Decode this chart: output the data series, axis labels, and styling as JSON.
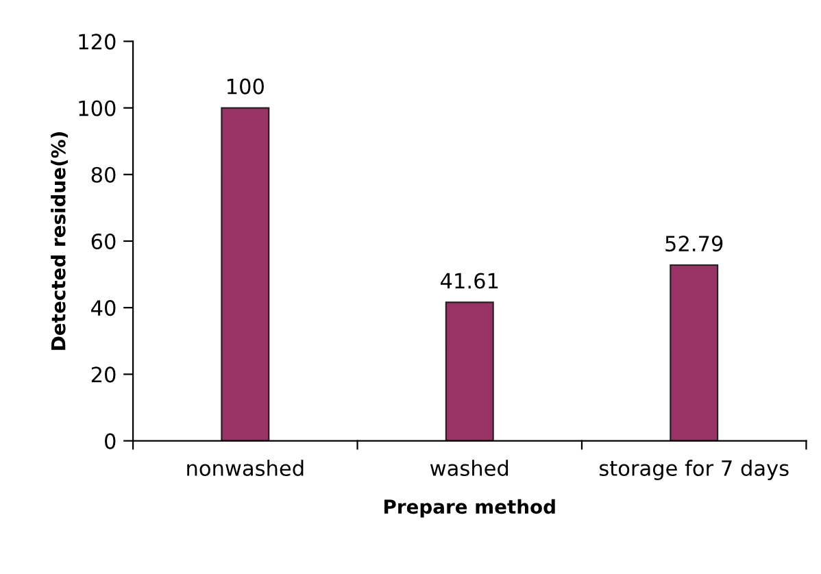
{
  "chart_data": {
    "type": "bar",
    "xlabel": "Prepare method",
    "ylabel": "Detected residue(%)",
    "categories": [
      "nonwashed",
      "washed",
      "storage for 7 days"
    ],
    "values": [
      100,
      41.61,
      52.79
    ],
    "value_labels": [
      "100",
      "41.61",
      "52.79"
    ],
    "color": "#993366",
    "ylim": [
      0,
      120
    ],
    "yticks": [
      0,
      20,
      40,
      60,
      80,
      100,
      120
    ],
    "grid": false,
    "legend": false
  }
}
